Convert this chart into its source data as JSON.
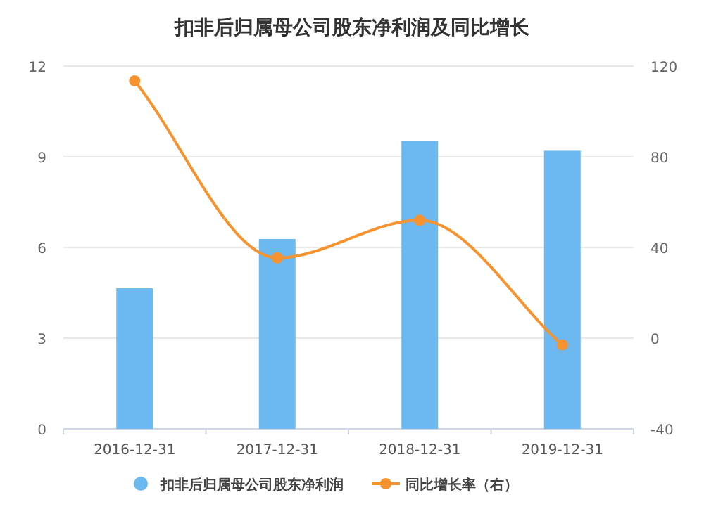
{
  "chart_data": {
    "type": "bar",
    "title": "扣非后归属母公司股东净利润及同比增长",
    "categories": [
      "2016-12-31",
      "2017-12-31",
      "2018-12-31",
      "2019-12-31"
    ],
    "series": [
      {
        "name": "扣非后归属母公司股东净利润",
        "color": "#6bb9f0",
        "values": [
          4.65,
          6.28,
          9.53,
          9.2
        ]
      },
      {
        "name": "同比增长率（右）",
        "type": "line",
        "axis": "y2",
        "color": "#f7932f",
        "values": [
          113.5,
          35.4,
          52,
          -3
        ]
      }
    ],
    "ylim": [
      0,
      12
    ],
    "yticks": [
      0,
      3,
      6,
      9,
      12
    ],
    "y2lim": [
      -40,
      120
    ],
    "y2ticks": [
      -40,
      0,
      40,
      80,
      120
    ],
    "grid": "y",
    "legend": "bottom",
    "marker": "circle"
  }
}
